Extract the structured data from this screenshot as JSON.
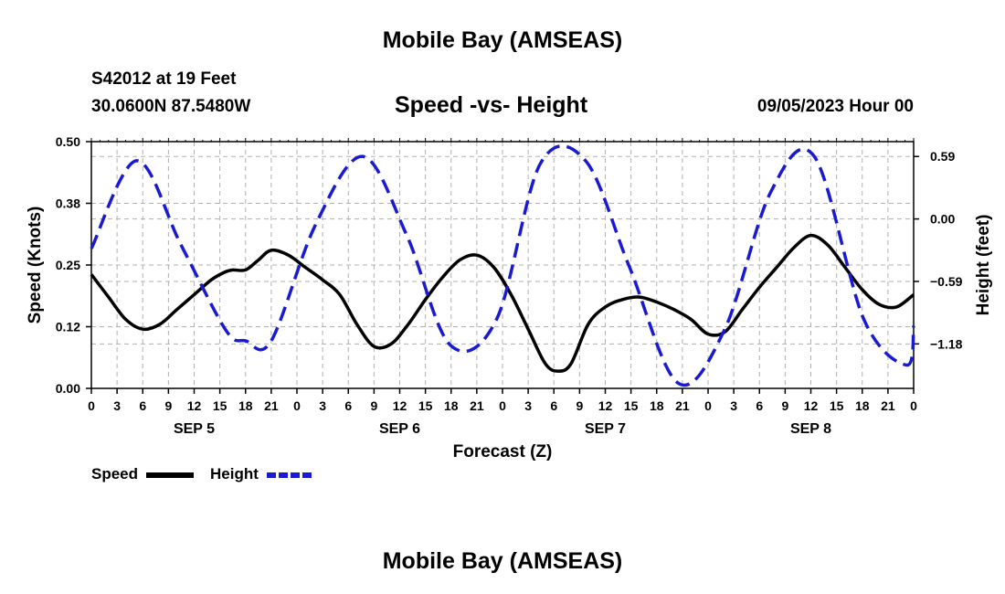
{
  "header": {
    "title": "Mobile Bay (AMSEAS)",
    "station": "S42012 at 19 Feet",
    "coords": "30.0600N  87.5480W",
    "subtitle": "Speed -vs- Height",
    "datetime": "09/05/2023 Hour 00",
    "footer_title": "Mobile Bay (AMSEAS)"
  },
  "legend": {
    "speed_label": "Speed",
    "height_label": "Height"
  },
  "colors": {
    "speed": "#000000",
    "height": "#1a1ad0",
    "grid": "#b0b0b0"
  },
  "chart_data": {
    "type": "line",
    "xlabel": "Forecast (Z)",
    "ylabel_left": "Speed (Knots)",
    "ylabel_right": "Height (feet)",
    "x_unit": "hours from 09/05/2023 00Z",
    "x_range": [
      0,
      96
    ],
    "x_tick_labels": [
      "0",
      "3",
      "6",
      "9",
      "12",
      "15",
      "18",
      "21",
      "0",
      "3",
      "6",
      "9",
      "12",
      "15",
      "18",
      "21",
      "0",
      "3",
      "6",
      "9",
      "12",
      "15",
      "18",
      "21",
      "0",
      "3",
      "6",
      "9",
      "12",
      "15",
      "18",
      "21",
      "0"
    ],
    "day_labels": [
      "SEP 5",
      "SEP 6",
      "SEP 7",
      "SEP 8"
    ],
    "ylim_left": [
      0,
      0.5
    ],
    "yticks_left": [
      "0.00",
      "0.12",
      "0.25",
      "0.38",
      "0.50"
    ],
    "yticks_right": [
      "0.59",
      "0.00",
      "-0.59",
      "-1.18"
    ],
    "ylim_right": [
      -1.6,
      0.73
    ],
    "grid": true,
    "series": [
      {
        "name": "Speed",
        "axis": "left",
        "style": "solid",
        "x": [
          0,
          2,
          4,
          6,
          8,
          10,
          12,
          14,
          15.5,
          16.5,
          18,
          19.5,
          21,
          23,
          25,
          27,
          29,
          31,
          33,
          35,
          37,
          39,
          41,
          43,
          45,
          47,
          49,
          51,
          53,
          54.5,
          56,
          58,
          60,
          62,
          64,
          66,
          68,
          70,
          72,
          74,
          76,
          78,
          80,
          82,
          84,
          86,
          88,
          90,
          92,
          94,
          96
        ],
        "y": [
          0.231,
          0.185,
          0.14,
          0.12,
          0.13,
          0.16,
          0.19,
          0.22,
          0.235,
          0.24,
          0.24,
          0.26,
          0.28,
          0.27,
          0.245,
          0.22,
          0.19,
          0.13,
          0.085,
          0.09,
          0.13,
          0.18,
          0.225,
          0.26,
          0.27,
          0.245,
          0.19,
          0.12,
          0.05,
          0.035,
          0.05,
          0.13,
          0.165,
          0.18,
          0.185,
          0.175,
          0.16,
          0.14,
          0.11,
          0.115,
          0.16,
          0.205,
          0.245,
          0.285,
          0.31,
          0.29,
          0.245,
          0.2,
          0.17,
          0.165,
          0.19
        ]
      },
      {
        "name": "Height",
        "axis": "right",
        "style": "dashed",
        "x": [
          0,
          5.3,
          10.5,
          15.7,
          18,
          21,
          26.2,
          31.7,
          36.8,
          41.9,
          47.3,
          52.4,
          57.7,
          62.8,
          68.5,
          73.9,
          79.3,
          84.4,
          90.2,
          95.2,
          96
        ],
        "y": [
          -0.28,
          0.55,
          -0.25,
          -1.05,
          -1.15,
          -1.15,
          -0.05,
          0.59,
          -0.15,
          -1.19,
          -0.95,
          0.52,
          0.55,
          -0.45,
          -1.55,
          -1.05,
          0.25,
          0.59,
          -0.95,
          -1.38,
          -1.01
        ]
      }
    ]
  }
}
